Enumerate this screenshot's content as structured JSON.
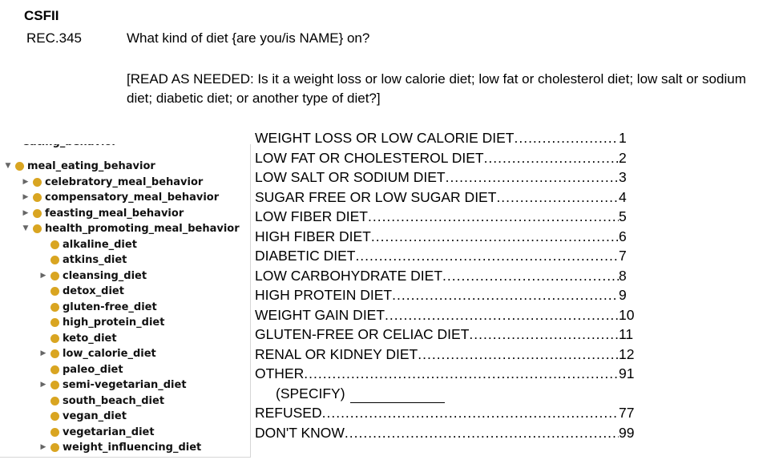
{
  "header": {
    "survey_title": "CSFII",
    "rec_id": "REC.345",
    "question": "What kind of diet {are you/is NAME} on?",
    "read_note": "[READ AS NEEDED: Is it a weight loss or low calorie diet; low fat or cholesterol diet; low salt or sodium diet; diabetic diet; or another type of diet?]"
  },
  "answers": [
    {
      "label": "WEIGHT LOSS OR LOW CALORIE DIET ",
      "code": "1"
    },
    {
      "label": "LOW FAT OR CHOLESTEROL DIET ",
      "code": "2"
    },
    {
      "label": "LOW SALT OR SODIUM DIET",
      "code": "3"
    },
    {
      "label": "SUGAR FREE OR LOW SUGAR DIET",
      "code": "4"
    },
    {
      "label": "LOW FIBER DIET",
      "code": "5"
    },
    {
      "label": "HIGH FIBER DIET",
      "code": "6"
    },
    {
      "label": "DIABETIC DIET",
      "code": "7"
    },
    {
      "label": "LOW CARBOHYDRATE DIET ",
      "code": "8"
    },
    {
      "label": "HIGH PROTEIN DIET ",
      "code": "9"
    },
    {
      "label": "WEIGHT GAIN DIET",
      "code": "10"
    },
    {
      "label": "GLUTEN-FREE OR CELIAC DIET",
      "code": "11"
    },
    {
      "label": "RENAL OR KIDNEY DIET",
      "code": "12"
    },
    {
      "label": "OTHER",
      "code": "91"
    }
  ],
  "specify_label": "(SPECIFY)",
  "answers_tail": [
    {
      "label": "REFUSED ",
      "code": "77"
    },
    {
      "label": "DON'T KNOW ",
      "code": "99"
    }
  ],
  "tree": {
    "partial_label": "eating_behavior",
    "nodes": [
      {
        "label": "meal_eating_behavior",
        "toggle": "expanded"
      },
      {
        "label": "celebratory_meal_behavior",
        "toggle": "collapsed"
      },
      {
        "label": "compensatory_meal_behavior",
        "toggle": "collapsed"
      },
      {
        "label": "feasting_meal_behavior",
        "toggle": "collapsed"
      },
      {
        "label": "health_promoting_meal_behavior",
        "toggle": "expanded"
      },
      {
        "label": "alkaline_diet",
        "toggle": "none"
      },
      {
        "label": "atkins_diet",
        "toggle": "none"
      },
      {
        "label": "cleansing_diet",
        "toggle": "collapsed"
      },
      {
        "label": "detox_diet",
        "toggle": "none"
      },
      {
        "label": "gluten-free_diet",
        "toggle": "none"
      },
      {
        "label": "high_protein_diet",
        "toggle": "none"
      },
      {
        "label": "keto_diet",
        "toggle": "none"
      },
      {
        "label": "low_calorie_diet",
        "toggle": "collapsed"
      },
      {
        "label": "paleo_diet",
        "toggle": "none"
      },
      {
        "label": "semi-vegetarian_diet",
        "toggle": "collapsed"
      },
      {
        "label": "south_beach_diet",
        "toggle": "none"
      },
      {
        "label": "vegan_diet",
        "toggle": "none"
      },
      {
        "label": "vegetarian_diet",
        "toggle": "none"
      },
      {
        "label": "weight_influencing_diet",
        "toggle": "collapsed"
      }
    ],
    "node_color": "#d9a521"
  }
}
